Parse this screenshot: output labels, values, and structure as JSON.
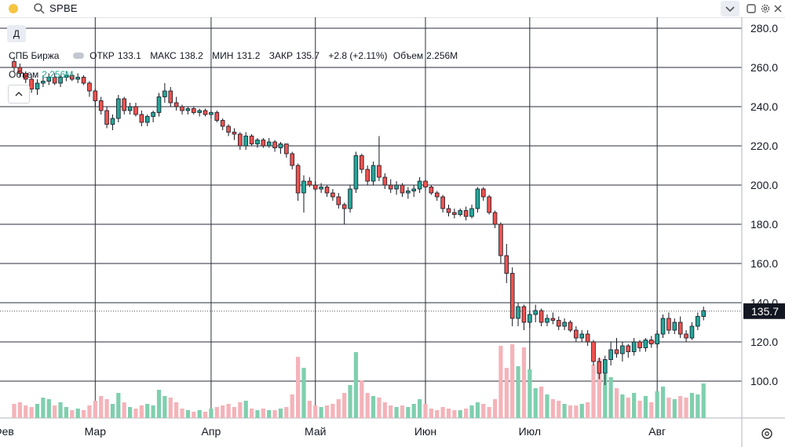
{
  "header": {
    "symbol": "SPBE",
    "timeframe_button": "Д",
    "icons": [
      "search-icon",
      "chevron-down-icon",
      "maximize-icon",
      "gear-icon",
      "close-icon",
      "chevron-up-icon",
      "settings-icon"
    ]
  },
  "legend": {
    "exchange": "СПБ Биржа",
    "open_label": "ОТКР",
    "open": "133.1",
    "high_label": "МАКС",
    "high": "138.2",
    "low_label": "МИН",
    "low": "131.2",
    "close_label": "ЗАКР",
    "close": "135.7",
    "change": "+2.8 (+2.11%)",
    "volume_label": "Объем",
    "volume": "2.256M",
    "volume_pane_label": "Объем",
    "volume_pane_value": "2.256M"
  },
  "chart_data": {
    "type": "candlestick",
    "price_axis": {
      "min": 100,
      "max": 280,
      "ticks": [
        280,
        260,
        240,
        220,
        200,
        180,
        160,
        140,
        120,
        100
      ]
    },
    "last_price": 135.7,
    "month_labels": [
      {
        "label": "Фев",
        "index": 0
      },
      {
        "label": "Мар",
        "index": 14
      },
      {
        "label": "Апр",
        "index": 34
      },
      {
        "label": "Май",
        "index": 52
      },
      {
        "label": "Июн",
        "index": 71
      },
      {
        "label": "Июл",
        "index": 89
      },
      {
        "label": "Авг",
        "index": 111
      }
    ],
    "colors": {
      "up": "#26a69a",
      "down": "#ef5350",
      "up_volume": "#7fcfae",
      "down_volume": "#f4b3b9"
    },
    "candles": [
      [
        263,
        265,
        258,
        260,
        0.9
      ],
      [
        260,
        262,
        255,
        257,
        1.0
      ],
      [
        257,
        258,
        252,
        254,
        0.8
      ],
      [
        254,
        256,
        247,
        249,
        0.7
      ],
      [
        249,
        254,
        246,
        252,
        0.9
      ],
      [
        252,
        256,
        250,
        253,
        1.3
      ],
      [
        253,
        257,
        251,
        255,
        1.2
      ],
      [
        255,
        257,
        251,
        252,
        0.8
      ],
      [
        252,
        256,
        250,
        255,
        1.0
      ],
      [
        255,
        258,
        253,
        256,
        0.7
      ],
      [
        256,
        258,
        253,
        254,
        0.5
      ],
      [
        254,
        257,
        252,
        255,
        0.6
      ],
      [
        255,
        256,
        251,
        252,
        0.5
      ],
      [
        252,
        253,
        245,
        248,
        0.8
      ],
      [
        248,
        249,
        240,
        243,
        1.1
      ],
      [
        243,
        245,
        236,
        238,
        1.4
      ],
      [
        238,
        240,
        229,
        231,
        1.2
      ],
      [
        231,
        236,
        228,
        234,
        0.9
      ],
      [
        234,
        246,
        232,
        244,
        1.6
      ],
      [
        244,
        245,
        236,
        238,
        1.0
      ],
      [
        238,
        242,
        236,
        240,
        0.7
      ],
      [
        240,
        242,
        235,
        236,
        0.6
      ],
      [
        236,
        238,
        230,
        232,
        0.8
      ],
      [
        232,
        236,
        230,
        235,
        0.9
      ],
      [
        235,
        238,
        232,
        237,
        0.8
      ],
      [
        237,
        247,
        235,
        245,
        1.8
      ],
      [
        245,
        252,
        242,
        248,
        1.4
      ],
      [
        248,
        250,
        240,
        242,
        1.3
      ],
      [
        242,
        245,
        238,
        240,
        1.0
      ],
      [
        240,
        241,
        236,
        238,
        0.6
      ],
      [
        238,
        240,
        236,
        239,
        0.5
      ],
      [
        239,
        240,
        236,
        237,
        0.4
      ],
      [
        237,
        239,
        235,
        238,
        0.5
      ],
      [
        238,
        239,
        235,
        236,
        0.4
      ],
      [
        236,
        238,
        234,
        237,
        0.6
      ],
      [
        237,
        238,
        232,
        233,
        0.7
      ],
      [
        233,
        234,
        228,
        230,
        0.8
      ],
      [
        230,
        231,
        225,
        227,
        0.9
      ],
      [
        227,
        229,
        223,
        226,
        0.7
      ],
      [
        226,
        227,
        218,
        220,
        1.0
      ],
      [
        220,
        227,
        218,
        225,
        1.1
      ],
      [
        225,
        226,
        220,
        221,
        0.6
      ],
      [
        221,
        224,
        219,
        223,
        0.5
      ],
      [
        223,
        224,
        219,
        220,
        0.6
      ],
      [
        220,
        224,
        219,
        222,
        0.5
      ],
      [
        222,
        223,
        217,
        219,
        0.5
      ],
      [
        219,
        222,
        216,
        221,
        0.6
      ],
      [
        221,
        221,
        214,
        216,
        0.7
      ],
      [
        216,
        217,
        208,
        210,
        1.5
      ],
      [
        210,
        211,
        192,
        196,
        3.9
      ],
      [
        196,
        205,
        186,
        202,
        3.2
      ],
      [
        202,
        204,
        199,
        200,
        1.1
      ],
      [
        200,
        202,
        197,
        198,
        0.8
      ],
      [
        198,
        201,
        196,
        199,
        0.7
      ],
      [
        199,
        200,
        194,
        196,
        0.8
      ],
      [
        196,
        198,
        192,
        194,
        0.9
      ],
      [
        194,
        196,
        188,
        190,
        1.2
      ],
      [
        190,
        191,
        180,
        188,
        1.6
      ],
      [
        188,
        200,
        186,
        198,
        2.1
      ],
      [
        198,
        217,
        196,
        215,
        4.2
      ],
      [
        215,
        216,
        206,
        208,
        2.4
      ],
      [
        208,
        210,
        200,
        202,
        1.6
      ],
      [
        202,
        212,
        200,
        210,
        1.4
      ],
      [
        210,
        225,
        202,
        204,
        1.3
      ],
      [
        204,
        206,
        198,
        200,
        1.0
      ],
      [
        200,
        203,
        196,
        198,
        0.8
      ],
      [
        198,
        202,
        195,
        200,
        0.7
      ],
      [
        200,
        201,
        194,
        196,
        0.8
      ],
      [
        196,
        199,
        193,
        197,
        0.7
      ],
      [
        197,
        200,
        194,
        198,
        0.9
      ],
      [
        198,
        204,
        196,
        202,
        1.2
      ],
      [
        202,
        203,
        197,
        199,
        0.9
      ],
      [
        199,
        200,
        195,
        196,
        0.6
      ],
      [
        196,
        197,
        192,
        194,
        0.5
      ],
      [
        194,
        195,
        186,
        188,
        0.7
      ],
      [
        188,
        190,
        184,
        186,
        0.6
      ],
      [
        186,
        188,
        183,
        185,
        0.5
      ],
      [
        185,
        188,
        184,
        187,
        0.5
      ],
      [
        187,
        189,
        182,
        184,
        0.6
      ],
      [
        184,
        190,
        183,
        188,
        0.8
      ],
      [
        188,
        199,
        186,
        198,
        1.0
      ],
      [
        198,
        199,
        192,
        194,
        0.9
      ],
      [
        194,
        195,
        185,
        186,
        0.7
      ],
      [
        186,
        187,
        178,
        180,
        1.2
      ],
      [
        180,
        181,
        160,
        164,
        4.6
      ],
      [
        164,
        170,
        150,
        155,
        3.2
      ],
      [
        155,
        158,
        128,
        132,
        4.7
      ],
      [
        132,
        140,
        128,
        138,
        3.3
      ],
      [
        138,
        139,
        126,
        130,
        4.5
      ],
      [
        130,
        136,
        127,
        134,
        3.1
      ],
      [
        134,
        139,
        130,
        136,
        1.9
      ],
      [
        136,
        137,
        128,
        130,
        2.0
      ],
      [
        130,
        134,
        128,
        132,
        1.5
      ],
      [
        132,
        135,
        129,
        131,
        1.2
      ],
      [
        131,
        133,
        126,
        128,
        1.1
      ],
      [
        128,
        132,
        126,
        130,
        0.9
      ],
      [
        130,
        131,
        125,
        126,
        0.8
      ],
      [
        126,
        128,
        120,
        122,
        0.8
      ],
      [
        122,
        126,
        120,
        124,
        0.9
      ],
      [
        124,
        126,
        118,
        120,
        1.0
      ],
      [
        120,
        121,
        108,
        110,
        3.4
      ],
      [
        110,
        112,
        101,
        104,
        3.8
      ],
      [
        104,
        113,
        98,
        111,
        2.8
      ],
      [
        111,
        120,
        108,
        116,
        2.6
      ],
      [
        116,
        122,
        112,
        114,
        1.9
      ],
      [
        114,
        120,
        110,
        118,
        1.5
      ],
      [
        118,
        119,
        112,
        115,
        1.3
      ],
      [
        115,
        122,
        113,
        120,
        1.6
      ],
      [
        120,
        121,
        115,
        117,
        1.1
      ],
      [
        117,
        122,
        115,
        121,
        1.4
      ],
      [
        121,
        123,
        117,
        119,
        1.0
      ],
      [
        119,
        126,
        117,
        124,
        1.7
      ],
      [
        124,
        134,
        122,
        132,
        2.0
      ],
      [
        132,
        135,
        124,
        126,
        1.3
      ],
      [
        126,
        132,
        124,
        130,
        1.2
      ],
      [
        130,
        133,
        122,
        124,
        1.4
      ],
      [
        124,
        126,
        120,
        122,
        1.3
      ],
      [
        122,
        130,
        121,
        128,
        1.6
      ],
      [
        128,
        135,
        126,
        133,
        1.5
      ],
      [
        133,
        138,
        131,
        136,
        2.2
      ]
    ]
  }
}
